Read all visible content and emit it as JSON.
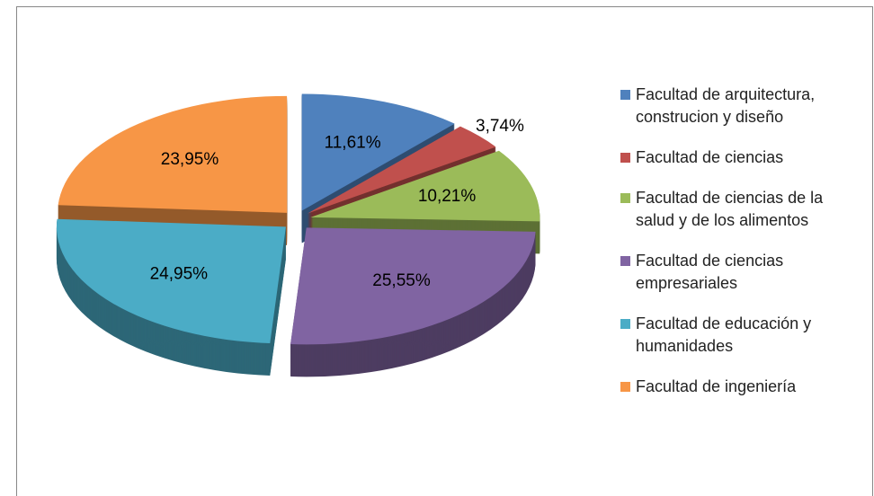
{
  "chart_data": {
    "type": "pie",
    "categories": [
      "Facultad de arquitectura, construcion y diseño",
      "Facultad de ciencias",
      "Facultad de ciencias de la salud y de los alimentos",
      "Facultad de ciencias empresariales",
      "Facultad de educación y humanidades",
      "Facultad de ingeniería"
    ],
    "values": [
      11.61,
      3.74,
      10.21,
      25.55,
      24.95,
      23.95
    ],
    "value_labels": [
      "11,61%",
      "3,74%",
      "10,21%",
      "25,55%",
      "24,95%",
      "23,95%"
    ],
    "colors": [
      "#4f81bd",
      "#c0504d",
      "#9bbb59",
      "#8064a2",
      "#4bacc6",
      "#f79646"
    ],
    "legend": "right"
  }
}
